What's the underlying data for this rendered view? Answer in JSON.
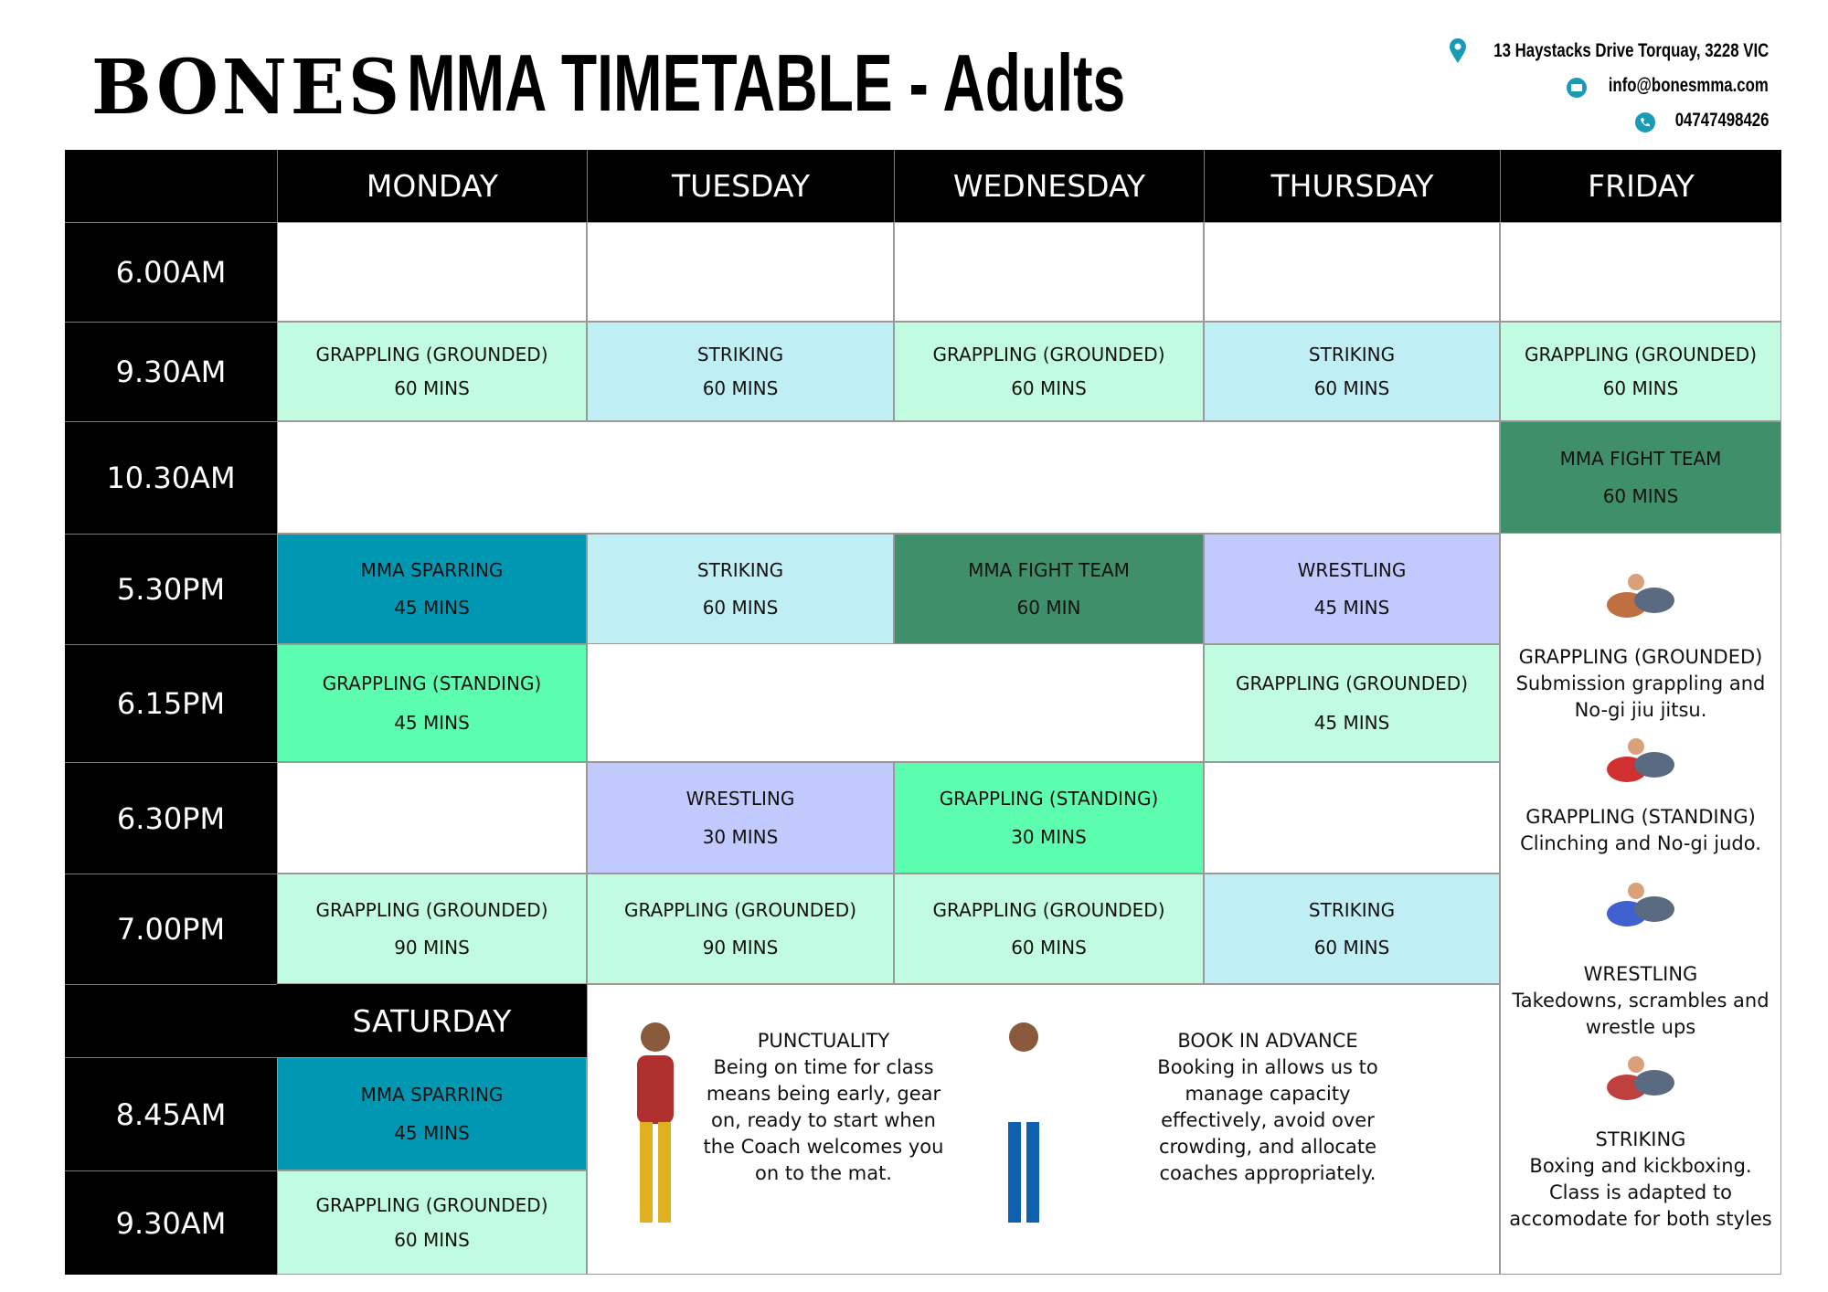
{
  "header": {
    "brand": "BONES",
    "title": "MMA TIMETABLE - Adults",
    "address": "13 Haystacks Drive Torquay, 3228 VIC",
    "email": "info@bonesmma.com",
    "phone": "04747498426"
  },
  "days": [
    "MONDAY",
    "TUESDAY",
    "WEDNESDAY",
    "THURSDAY",
    "FRIDAY"
  ],
  "rows": [
    {
      "time": "6.00AM",
      "cells": [
        null,
        null,
        null,
        null,
        null
      ]
    },
    {
      "time": "9.30AM",
      "cells": [
        {
          "name": "GRAPPLING (GROUNDED)",
          "duration": "60 MINS",
          "color": "#c1fbe0"
        },
        {
          "name": "STRIKING",
          "duration": "60 MINS",
          "color": "#c0eef5"
        },
        {
          "name": "GRAPPLING (GROUNDED)",
          "duration": "60 MINS",
          "color": "#c1fbe0"
        },
        {
          "name": "STRIKING",
          "duration": "60 MINS",
          "color": "#c0eef5"
        },
        {
          "name": "GRAPPLING (GROUNDED)",
          "duration": "60 MINS",
          "color": "#c1fbe0"
        }
      ]
    },
    {
      "time": "10.30AM",
      "cells": [
        null,
        null,
        null,
        null,
        {
          "name": "MMA FIGHT TEAM",
          "duration": "60 MINS",
          "color": "#3f8f6b"
        }
      ]
    },
    {
      "time": "5.30PM",
      "cells": [
        {
          "name": "MMA SPARRING",
          "duration": "45 MINS",
          "color": "#0097b2"
        },
        {
          "name": "STRIKING",
          "duration": "60 MINS",
          "color": "#c0eef5"
        },
        {
          "name": "MMA FIGHT TEAM",
          "duration": "60 MIN",
          "color": "#3f8f6b"
        },
        {
          "name": "WRESTLING",
          "duration": "45 MINS",
          "color": "#c1c9fd"
        },
        null
      ]
    },
    {
      "time": "6.15PM",
      "cells": [
        {
          "name": "GRAPPLING (STANDING)",
          "duration": "45 MINS",
          "color": "#5dfdb0"
        },
        null,
        null,
        {
          "name": "GRAPPLING (GROUNDED)",
          "duration": "45 MINS",
          "color": "#c1fbe0"
        },
        null
      ]
    },
    {
      "time": "6.30PM",
      "cells": [
        null,
        {
          "name": "WRESTLING",
          "duration": "30 MINS",
          "color": "#c1c9fd"
        },
        {
          "name": "GRAPPLING (STANDING)",
          "duration": "30 MINS",
          "color": "#5dfdb0"
        },
        null,
        null
      ]
    },
    {
      "time": "7.00PM",
      "cells": [
        {
          "name": "GRAPPLING (GROUNDED)",
          "duration": "90 MINS",
          "color": "#c1fbe0"
        },
        {
          "name": "GRAPPLING (GROUNDED)",
          "duration": "90 MINS",
          "color": "#c1fbe0"
        },
        {
          "name": "GRAPPLING (GROUNDED)",
          "duration": "60 MINS",
          "color": "#c1fbe0"
        },
        {
          "name": "STRIKING",
          "duration": "60 MINS",
          "color": "#c0eef5"
        },
        null
      ]
    }
  ],
  "saturday": {
    "day": "SATURDAY",
    "rows": [
      {
        "time": "8.45AM",
        "cell": {
          "name": "MMA SPARRING",
          "duration": "45 MINS",
          "color": "#0097b2"
        }
      },
      {
        "time": "9.30AM",
        "cell": {
          "name": "GRAPPLING (GROUNDED)",
          "duration": "60 MINS",
          "color": "#c1fbe0"
        }
      }
    ]
  },
  "notes": [
    {
      "title": "PUNCTUALITY",
      "text": "Being on time for class means being early, gear on, ready to start when the Coach welcomes you on to the mat."
    },
    {
      "title": "BOOK IN ADVANCE",
      "text": "Booking in allows us to manage capacity effectively, avoid over crowding, and allocate coaches appropriately."
    }
  ],
  "legend": [
    {
      "title": "GRAPPLING (GROUNDED)",
      "text": "Submission grappling and No-gi jiu jitsu."
    },
    {
      "title": "GRAPPLING (STANDING)",
      "text": "Clinching and No-gi judo."
    },
    {
      "title": "WRESTLING",
      "text": "Takedowns, scrambles and wrestle ups"
    },
    {
      "title": "STRIKING",
      "text": "Boxing and kickboxing. Class is adapted to accomodate for both styles"
    }
  ]
}
